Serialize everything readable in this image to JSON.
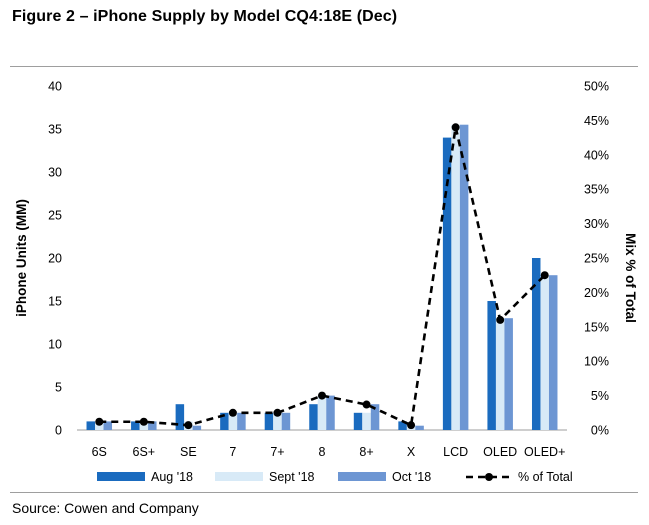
{
  "header": {
    "title": "Figure 2 – iPhone Supply by Model CQ4:18E (Dec)"
  },
  "footer": {
    "source": "Source: Cowen and Company"
  },
  "chart_data": {
    "type": "bar",
    "categories": [
      "6S",
      "6S+",
      "SE",
      "7",
      "7+",
      "8",
      "8+",
      "X",
      "LCD",
      "OLED",
      "OLED+"
    ],
    "series": [
      {
        "name": "Aug '18",
        "type": "bar",
        "axis": "left",
        "values": [
          1,
          1,
          3,
          2,
          2,
          3,
          2,
          1,
          34,
          15,
          20
        ]
      },
      {
        "name": "Sept '18",
        "type": "bar",
        "axis": "left",
        "values": [
          1,
          1,
          1,
          2,
          2,
          4,
          2,
          0.5,
          35.5,
          13,
          18
        ]
      },
      {
        "name": "Oct '18",
        "type": "bar",
        "axis": "left",
        "values": [
          1,
          1,
          0.5,
          2,
          2,
          4,
          3,
          0.5,
          35.5,
          13,
          18
        ]
      },
      {
        "name": "% of Total",
        "type": "line",
        "axis": "right",
        "values": [
          1.2,
          1.2,
          0.7,
          2.5,
          2.5,
          5.0,
          3.7,
          0.7,
          44.0,
          16.0,
          22.5
        ]
      }
    ],
    "ylabel": "iPhone Units (MM)",
    "ylim": [
      0,
      40
    ],
    "yticks": [
      "0",
      "5",
      "10",
      "15",
      "20",
      "25",
      "30",
      "35",
      "40"
    ],
    "y2label": "Mix % of Total",
    "y2lim": [
      0,
      50
    ],
    "y2ticks": [
      "0%",
      "5%",
      "10%",
      "15%",
      "20%",
      "25%",
      "30%",
      "35%",
      "40%",
      "45%",
      "50%"
    ],
    "legend_position": "bottom",
    "grid": false,
    "colors": {
      "aug": "#1a6bbf",
      "sept": "#d8eaf7",
      "oct": "#6d96d3",
      "line": "#000000",
      "axis": "#9e9e9e"
    }
  }
}
